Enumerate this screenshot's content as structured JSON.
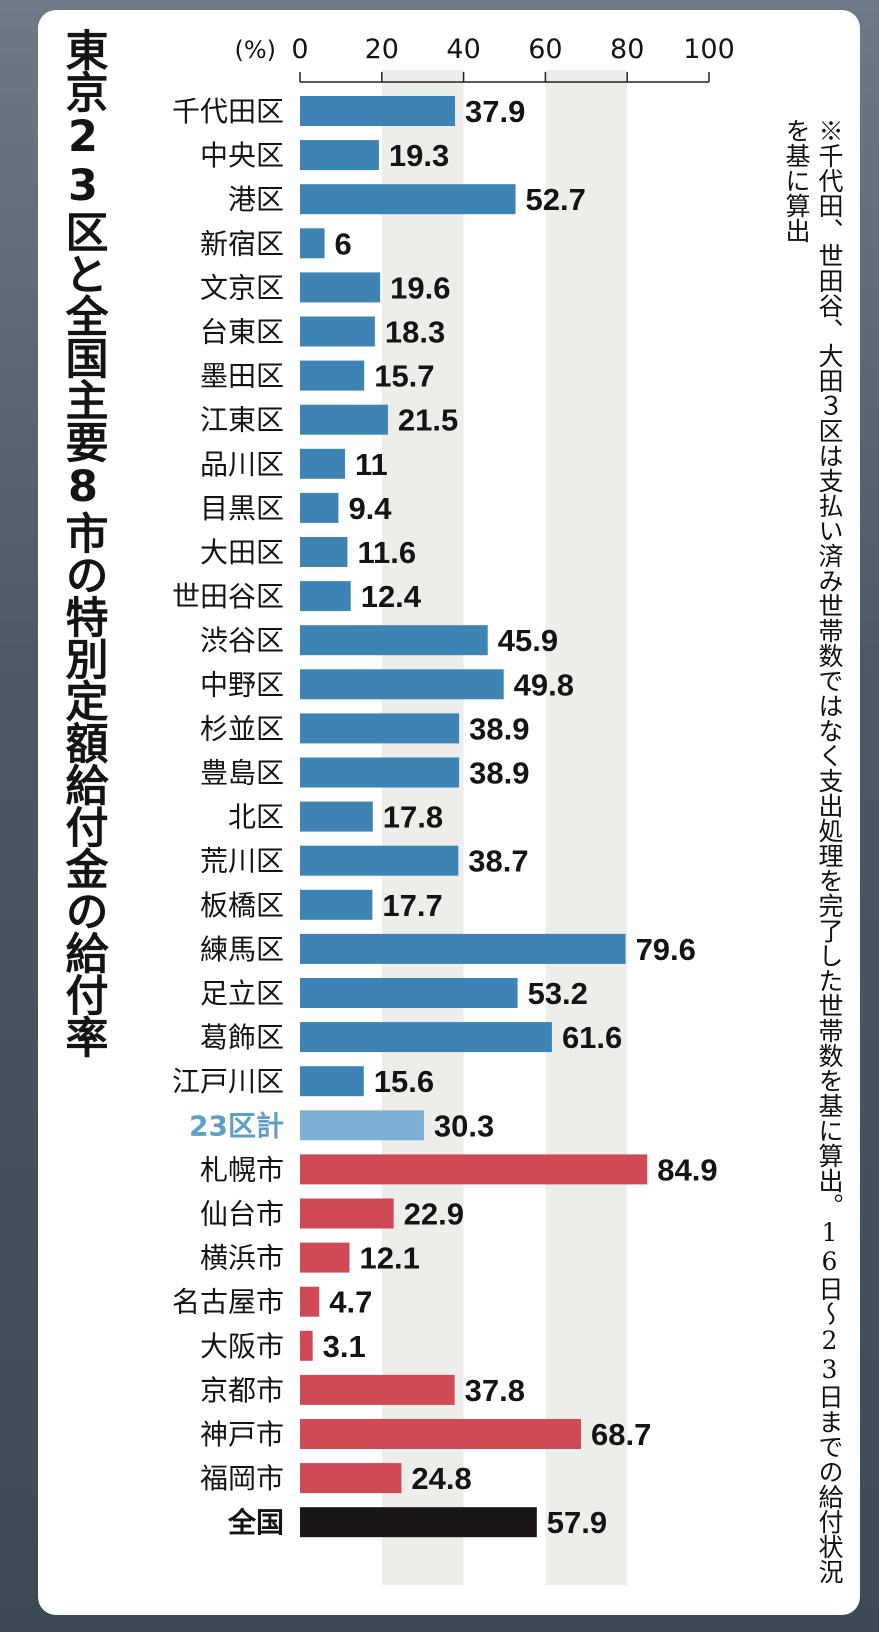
{
  "title": "東京23区と全国主要8市の特別定額給付金の給付率",
  "note": "※千代田、世田谷、大田３区は支払い済み世帯数ではなく支出処理を完了した世帯数を基に算出。16日～23日までの給付状況を基に算出",
  "chart_data": {
    "type": "bar",
    "orientation": "horizontal",
    "unit_label": "(%)",
    "xlim": [
      0,
      100
    ],
    "xticks": [
      "0",
      "20",
      "40",
      "60",
      "80",
      "100"
    ],
    "grid": "alternating-bands",
    "categories": [
      "千代田区",
      "中央区",
      "港区",
      "新宿区",
      "文京区",
      "台東区",
      "墨田区",
      "江東区",
      "品川区",
      "目黒区",
      "大田区",
      "世田谷区",
      "渋谷区",
      "中野区",
      "杉並区",
      "豊島区",
      "北区",
      "荒川区",
      "板橋区",
      "練馬区",
      "足立区",
      "葛飾区",
      "江戸川区",
      "23区計",
      "札幌市",
      "仙台市",
      "横浜市",
      "名古屋市",
      "大阪市",
      "京都市",
      "神戸市",
      "福岡市",
      "全国"
    ],
    "values": [
      37.9,
      19.3,
      52.7,
      6,
      19.6,
      18.3,
      15.7,
      21.5,
      11,
      9.4,
      11.6,
      12.4,
      45.9,
      49.8,
      38.9,
      38.9,
      17.8,
      38.7,
      17.7,
      79.6,
      53.2,
      61.6,
      15.6,
      30.3,
      84.9,
      22.9,
      12.1,
      4.7,
      3.1,
      37.8,
      68.7,
      24.8,
      57.9
    ],
    "value_labels": [
      "37.9",
      "19.3",
      "52.7",
      "6",
      "19.6",
      "18.3",
      "15.7",
      "21.5",
      "11",
      "9.4",
      "11.6",
      "12.4",
      "45.9",
      "49.8",
      "38.9",
      "38.9",
      "17.8",
      "38.7",
      "17.7",
      "79.6",
      "53.2",
      "61.6",
      "15.6",
      "30.3",
      "84.9",
      "22.9",
      "12.1",
      "4.7",
      "3.1",
      "37.8",
      "68.7",
      "24.8",
      "57.9"
    ],
    "groups": [
      "ward",
      "ward",
      "ward",
      "ward",
      "ward",
      "ward",
      "ward",
      "ward",
      "ward",
      "ward",
      "ward",
      "ward",
      "ward",
      "ward",
      "ward",
      "ward",
      "ward",
      "ward",
      "ward",
      "ward",
      "ward",
      "ward",
      "ward",
      "ward-total",
      "city",
      "city",
      "city",
      "city",
      "city",
      "city",
      "city",
      "city",
      "national"
    ],
    "colors": {
      "ward": "#3d83b3",
      "ward-total": "#7db0d3",
      "ward-total-label": "#5e9fca",
      "city": "#cf4a55",
      "national": "#1a1414",
      "band": "#ededea",
      "text": "#141414"
    }
  }
}
